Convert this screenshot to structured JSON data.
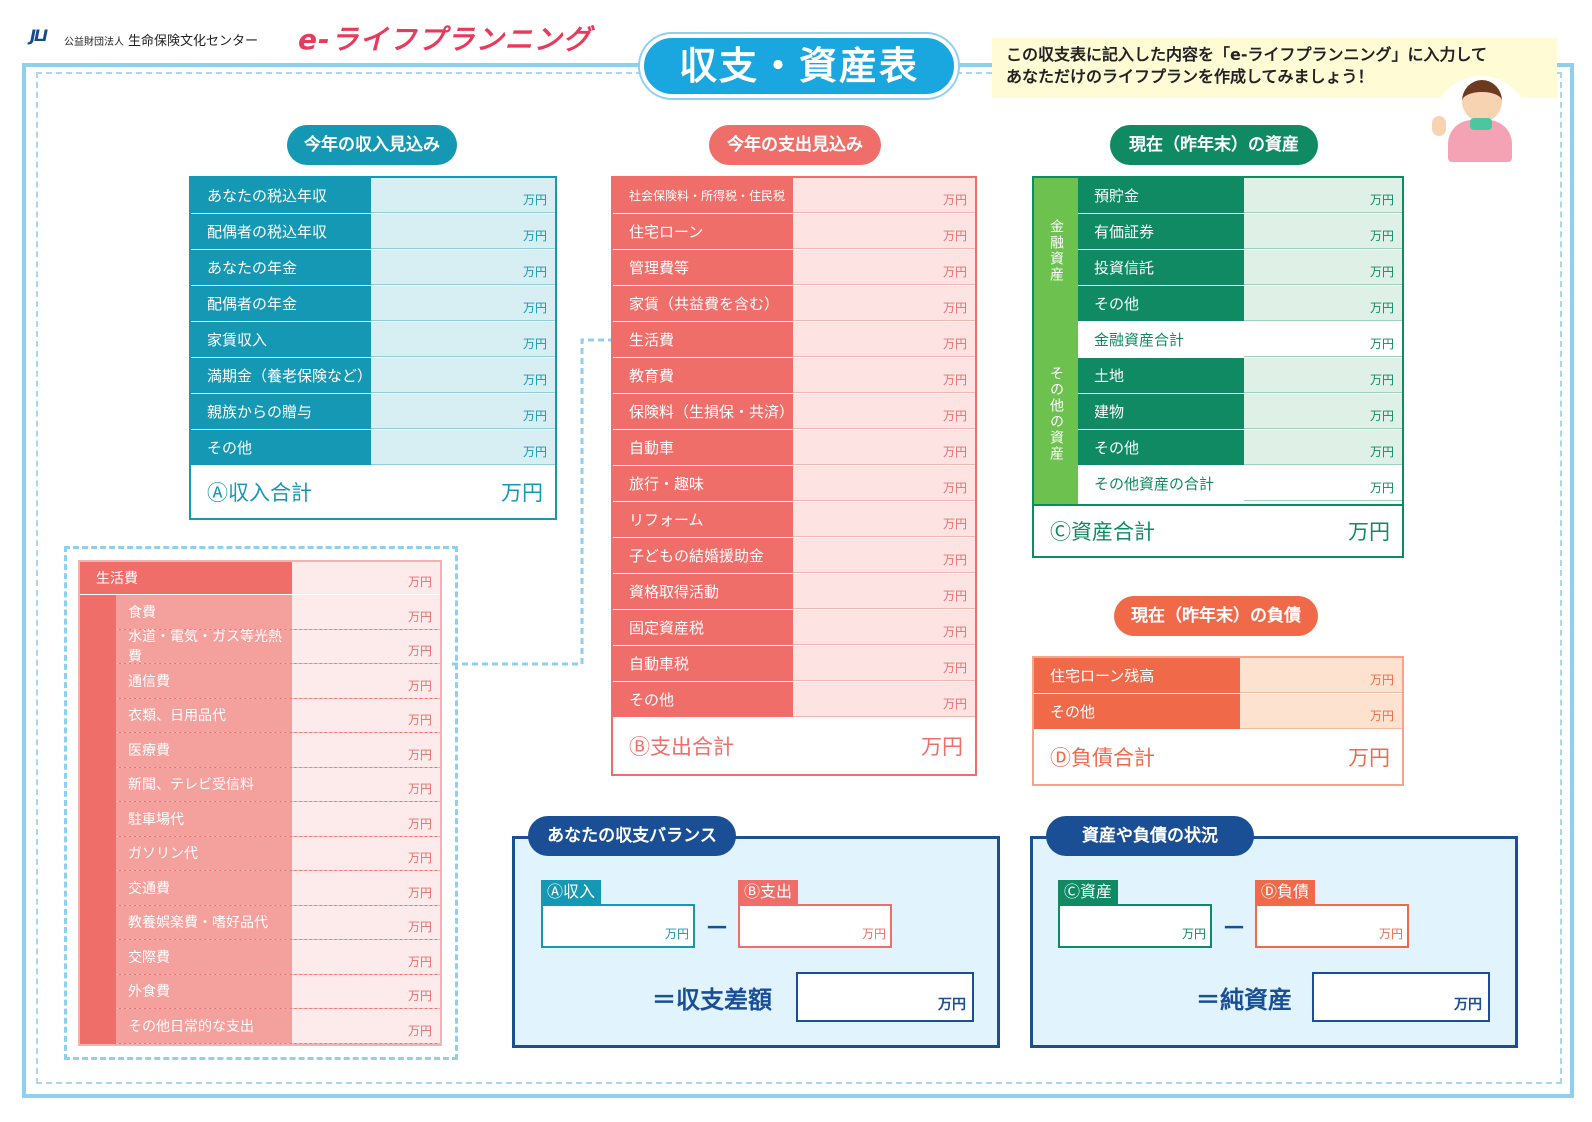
{
  "header": {
    "logo_mark": "JLI",
    "org_prefix": "公益財団法人",
    "org_name": "生命保険文化センター",
    "brand": "e-ライフプランニング",
    "title": "収支・資産表",
    "note_line1": "この収支表に記入した内容を「e-ライフプランニング」に入力して",
    "note_line2": "あなただけのライフプランを作成してみましょう！"
  },
  "unit": "万円",
  "colors": {
    "income": "#1598b3",
    "expense": "#ef6e6a",
    "asset": "#0f8a62",
    "asset_side": "#6cc14f",
    "liability": "#f06a4a",
    "balance": "#1b4f95"
  },
  "income": {
    "title": "今年の収入見込み",
    "rows": [
      "あなたの税込年収",
      "配偶者の税込年収",
      "あなたの年金",
      "配偶者の年金",
      "家賃収入",
      "満期金（養老保険など）",
      "親族からの贈与",
      "その他"
    ],
    "total": "Ⓐ収入合計"
  },
  "expense": {
    "title": "今年の支出見込み",
    "rows": [
      "社会保険料・所得税・住民税",
      "住宅ローン",
      "管理費等",
      "家賃（共益費を含む）",
      "生活費",
      "教育費",
      "保険料（生損保・共済）",
      "自動車",
      "旅行・趣味",
      "リフォーム",
      "子どもの結婚援助金",
      "資格取得活動",
      "固定資産税",
      "自動車税",
      "その他"
    ],
    "total": "Ⓑ支出合計"
  },
  "assets": {
    "title": "現在（昨年末）の資産",
    "group1": "金融資産",
    "group2": "その他の資産",
    "financial": [
      "預貯金",
      "有価証券",
      "投資信託",
      "その他"
    ],
    "financial_total": "金融資産合計",
    "other": [
      "土地",
      "建物",
      "その他"
    ],
    "other_total": "その他資産の合計",
    "total": "Ⓒ資産合計"
  },
  "liabilities": {
    "title": "現在（昨年末）の負債",
    "rows": [
      "住宅ローン残高",
      "その他"
    ],
    "total": "Ⓓ負債合計"
  },
  "living": {
    "header": "生活費",
    "rows": [
      "食費",
      "水道・電気・ガス等光熱費",
      "通信費",
      "衣類、日用品代",
      "医療費",
      "新聞、テレビ受信料",
      "駐車場代",
      "ガソリン代",
      "交通費",
      "教養娯楽費・嗜好品代",
      "交際費",
      "外食費",
      "その他日常的な支出"
    ]
  },
  "balance": {
    "title": "あなたの収支バランス",
    "a": "Ⓐ収入",
    "b": "Ⓑ支出",
    "minus": "－",
    "result": "＝収支差額"
  },
  "status": {
    "title": "資産や負債の状況",
    "c": "Ⓒ資産",
    "d": "Ⓓ負債",
    "minus": "－",
    "result": "＝純資産"
  }
}
